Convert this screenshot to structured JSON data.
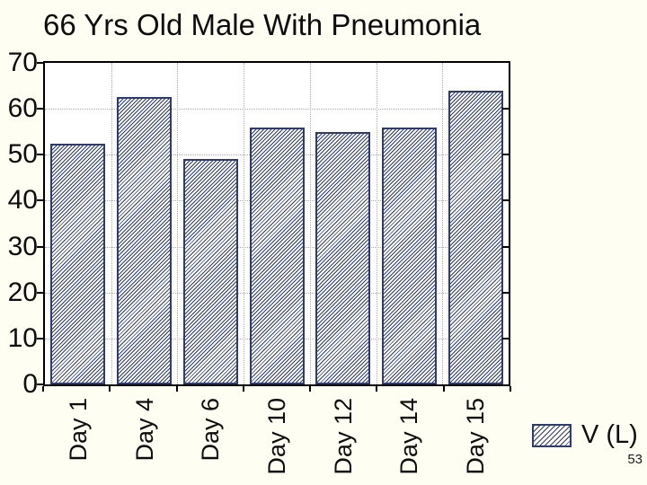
{
  "chart_data": {
    "type": "bar",
    "title": "66 Yrs Old Male With Pneumonia",
    "categories": [
      "Day 1",
      "Day 4",
      "Day 6",
      "Day 10",
      "Day 12",
      "Day 14",
      "Day 15"
    ],
    "series": [
      {
        "name": "V (L)",
        "values": [
          52.5,
          62.5,
          49,
          56,
          55,
          56,
          64
        ]
      }
    ],
    "xlabel": "",
    "ylabel": "",
    "ylim": [
      0,
      70
    ],
    "yticks": [
      0,
      10,
      20,
      30,
      40,
      50,
      60,
      70
    ],
    "grid": "dotted, horizontal and vertical",
    "bar_style": "diagonal-hatch",
    "legend": {
      "label": "V (L)",
      "position": "bottom-right"
    }
  },
  "page_number": "53",
  "colors": {
    "canvas_background": "#FFFEF2",
    "plot_background": "#FFFFFF",
    "bar_edge": "#2F3B6E",
    "bar_hatch": "#2F3B6E",
    "bar_fill": "#FCFDFF",
    "gridline": "#ABABAB",
    "axis_frame": "#000000",
    "text": "#0D0D0D"
  }
}
